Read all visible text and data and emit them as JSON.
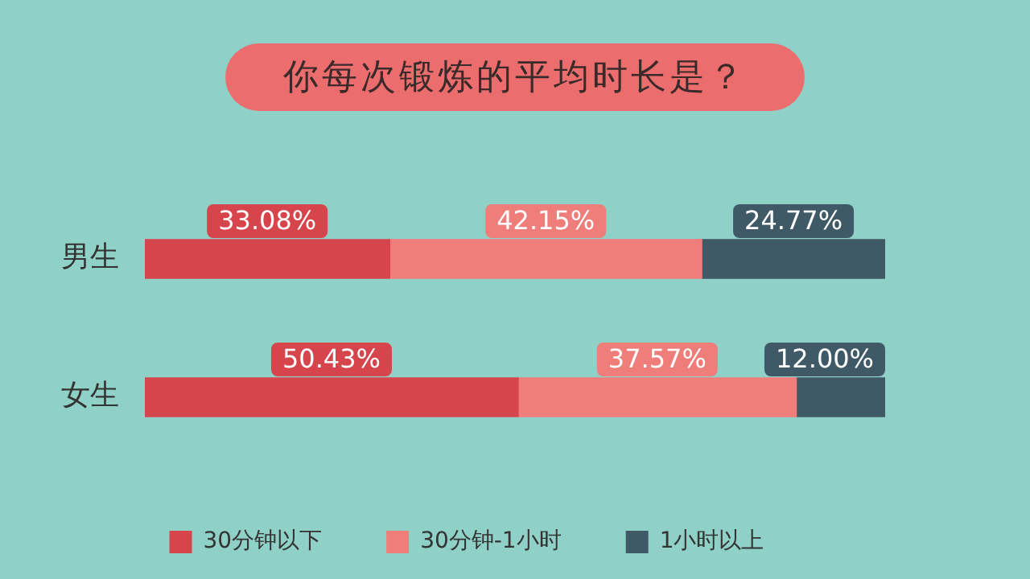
{
  "chart_data": {
    "type": "bar",
    "orientation": "horizontal",
    "stacked": true,
    "title": "你每次锻炼的平均时长是？",
    "categories": [
      "男生",
      "女生"
    ],
    "tick_labels": "y",
    "legend": "bottom",
    "series": [
      {
        "name": "30分钟以下",
        "color": "#d6454c",
        "values": [
          33.08,
          50.43
        ],
        "value_labels": [
          "33.08%",
          "50.43%"
        ]
      },
      {
        "name": "30分钟-1小时",
        "color": "#ef7d79",
        "values": [
          42.15,
          37.57
        ],
        "value_labels": [
          "42.15%",
          "37.57%"
        ]
      },
      {
        "name": "1小时以上",
        "color": "#3f5a66",
        "values": [
          24.77,
          12.0
        ],
        "value_labels": [
          "24.77%",
          "12.00%"
        ]
      }
    ]
  }
}
